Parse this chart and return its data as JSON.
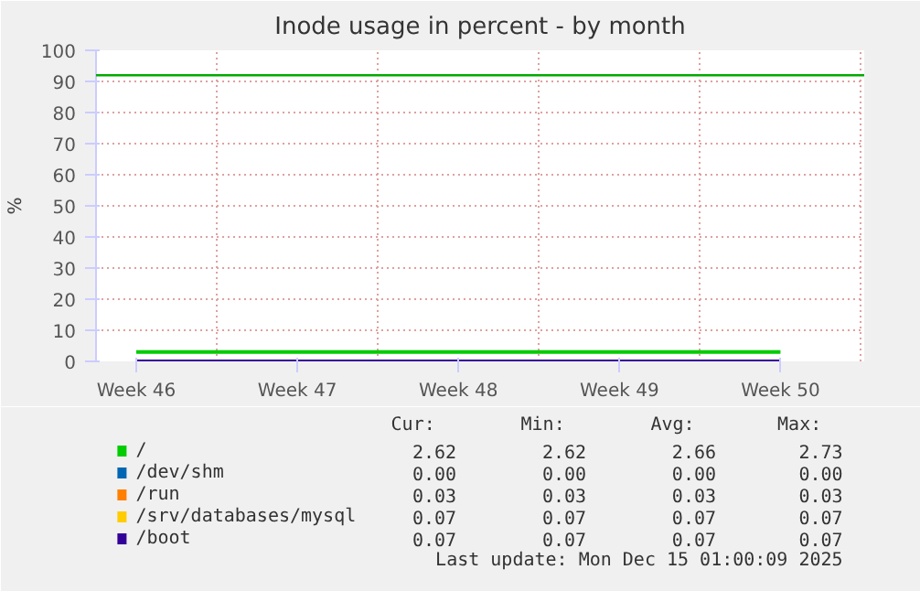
{
  "chart_data": {
    "type": "line",
    "title": "Inode usage in percent - by month",
    "ylabel": "%",
    "categories": [
      "Week 46",
      "Week 47",
      "Week 48",
      "Week 49",
      "Week 50"
    ],
    "ylim": [
      0,
      100
    ],
    "yticks": [
      0,
      10,
      20,
      30,
      40,
      50,
      60,
      70,
      80,
      90,
      100
    ],
    "grid": true,
    "legend": "bottom",
    "series": [
      {
        "name": "/",
        "color": "#00cc00",
        "values": [
          3,
          3,
          3,
          3,
          3
        ]
      },
      {
        "name": "/dev/shm",
        "color": "#0066b3",
        "values": [
          null,
          null,
          null,
          null,
          null
        ]
      },
      {
        "name": "/run",
        "color": "#ff8000",
        "values": [
          null,
          null,
          null,
          null,
          null
        ]
      },
      {
        "name": "/srv/databases/mysql",
        "color": "#ffcc00",
        "values": [
          null,
          null,
          null,
          null,
          null
        ]
      },
      {
        "name": "/boot",
        "color": "#330099",
        "values": [
          0,
          0,
          0,
          0,
          0
        ]
      }
    ],
    "ref_lines": [
      {
        "axis": "y",
        "value": 92,
        "color": "#00aa00"
      }
    ],
    "annotations": [
      "Cur: Min: Avg: Max:",
      "2.62 2.62 2.66 2.73",
      "0.00 0.00 0.00 0.00",
      "0.03 0.03 0.03 0.03",
      "0.07 0.07 0.07 0.07",
      "0.07 0.07 0.07 0.07",
      "Last update: Mon Dec 15 01:00:09 2025"
    ]
  }
}
